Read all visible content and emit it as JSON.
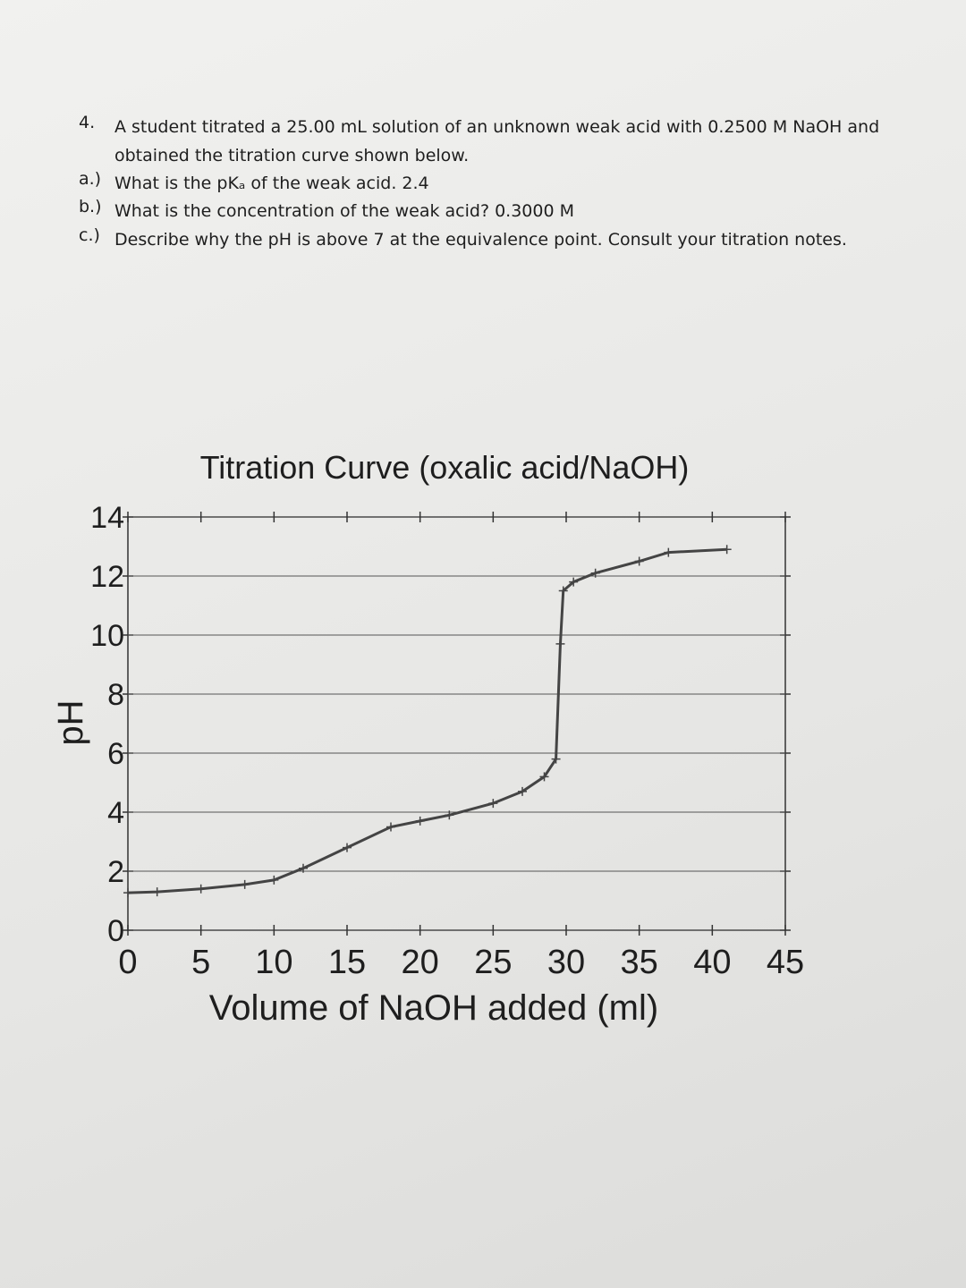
{
  "question": {
    "number": "4.",
    "stem": "A student titrated a 25.00 mL solution of an unknown weak acid with 0.2500 M NaOH and obtained the titration curve shown below.",
    "parts": [
      {
        "label": "a.)",
        "text": "What is the pKₐ of the weak acid. 2.4"
      },
      {
        "label": "b.)",
        "text": "What is the concentration of the weak acid? 0.3000 M"
      },
      {
        "label": "c.)",
        "text": "Describe why the pH is above 7 at the equivalence point. Consult your titration notes."
      }
    ]
  },
  "chart_data": {
    "type": "line",
    "title": "Titration Curve (oxalic acid/NaOH)",
    "x_label": "Volume of NaOH added (ml)",
    "y_label": "pH",
    "x": [
      0,
      2,
      5,
      8,
      10,
      12,
      15,
      18,
      20,
      22,
      25,
      27,
      28.5,
      29.3,
      29.6,
      29.8,
      30.5,
      32,
      35,
      37,
      41
    ],
    "series": [
      {
        "name": "pH",
        "color": "#444444",
        "values": [
          1.27,
          1.3,
          1.4,
          1.55,
          1.7,
          2.1,
          2.8,
          3.5,
          3.7,
          3.9,
          4.3,
          4.7,
          5.2,
          5.8,
          9.7,
          11.5,
          11.8,
          12.1,
          12.5,
          12.8,
          12.9
        ]
      }
    ],
    "xlim": [
      0,
      45
    ],
    "xticks": [
      0,
      5,
      10,
      15,
      20,
      25,
      30,
      35,
      40,
      45
    ],
    "ylim": [
      0,
      14
    ],
    "yticks": [
      0,
      2,
      4,
      6,
      8,
      10,
      12,
      14
    ],
    "grid": true
  }
}
